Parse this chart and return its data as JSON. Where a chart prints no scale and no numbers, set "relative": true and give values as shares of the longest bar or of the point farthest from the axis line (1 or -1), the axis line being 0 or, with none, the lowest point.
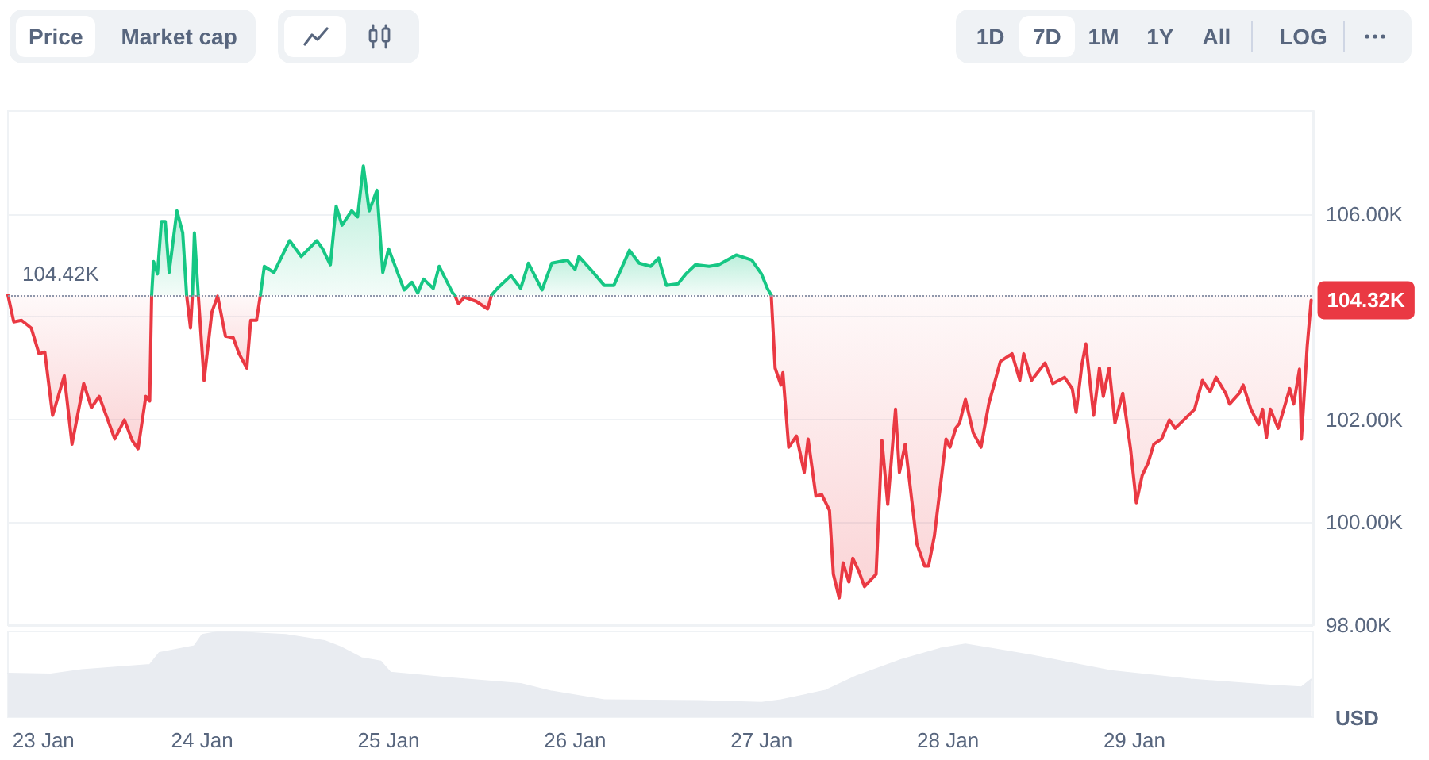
{
  "chart_data": [
    {
      "type": "line",
      "ylabel": "USD",
      "annotations": [
        "Price",
        "Market cap",
        "1D",
        "7D",
        "1M",
        "1Y",
        "All",
        "LOG"
      ],
      "x": [
        "--01-22T23:00",
        "--01-22T23:45",
        "--01-23T00:45",
        "--01-23T02:00",
        "--01-23T03:00",
        "--01-23T03:45",
        "--01-23T04:45",
        "--01-23T06:15",
        "--01-23T07:15",
        "--01-23T08:45",
        "--01-23T09:45",
        "--01-23T10:45",
        "--01-23T12:45",
        "--01-23T14:00",
        "--01-23T15:00",
        "--01-23T15:45",
        "--01-23T16:45",
        "--01-23T17:15",
        "--01-23T17:30",
        "--01-23T17:45",
        "--01-23T18:15",
        "--01-23T18:45",
        "--01-23T19:15",
        "--01-23T19:45",
        "--01-23T20:45",
        "--01-23T21:30",
        "--01-23T22:00",
        "--01-23T22:30",
        "--01-23T22:45",
        "--01-23T23:00",
        "--01-23T23:30",
        "--01-24T00:15",
        "--01-24T01:15",
        "--01-24T02:00",
        "--01-24T03:00",
        "--01-24T04:00",
        "--01-24T04:45",
        "--01-24T05:45",
        "--01-24T06:15",
        "--01-24T07:00",
        "--01-24T07:30",
        "--01-24T08:00",
        "--01-24T09:15",
        "--01-24T11:15",
        "--01-24T12:45",
        "--01-24T14:45",
        "--01-24T15:30",
        "--01-24T16:30",
        "--01-24T17:15",
        "--01-24T18:00",
        "--01-24T19:15",
        "--01-24T20:00",
        "--01-24T20:45",
        "--01-24T21:30",
        "--01-24T22:30",
        "--01-24T23:15",
        "--01-25T00:00",
        "--01-25T01:00",
        "--01-25T02:00",
        "--01-25T03:00",
        "--01-25T03:45",
        "--01-25T04:30",
        "--01-25T05:45",
        "--01-25T06:30",
        "--01-25T08:15",
        "--01-25T08:30",
        "--01-25T09:00",
        "--01-25T09:45",
        "--01-25T11:15",
        "--01-25T12:45",
        "--01-25T13:15",
        "--01-25T14:00",
        "--01-25T15:45",
        "--01-25T17:00",
        "--01-25T18:00",
        "--01-25T19:45",
        "--01-25T21:00",
        "--01-25T23:00",
        "--01-26T00:00",
        "--01-26T00:30",
        "--01-26T02:00",
        "--01-26T03:45",
        "--01-26T05:00",
        "--01-26T07:00",
        "--01-26T08:15",
        "--01-26T09:45",
        "--01-26T10:45",
        "--01-26T11:45",
        "--01-26T13:15",
        "--01-26T14:15",
        "--01-26T15:30",
        "--01-26T17:15",
        "--01-26T18:30",
        "--01-26T20:45",
        "--01-26T22:45",
        "--01-27T00:00",
        "--01-27T00:45",
        "--01-27T01:15",
        "--01-27T01:45",
        "--01-27T02:30",
        "--01-27T02:45",
        "--01-27T03:30",
        "--01-27T04:30",
        "--01-27T05:30",
        "--01-27T06:00",
        "--01-27T07:00",
        "--01-27T07:45",
        "--01-27T08:45",
        "--01-27T09:15",
        "--01-27T10:00",
        "--01-27T10:30",
        "--01-27T11:15",
        "--01-27T11:45",
        "--01-27T12:30",
        "--01-27T13:15",
        "--01-27T14:45",
        "--01-27T15:30",
        "--01-27T16:15",
        "--01-27T17:15",
        "--01-27T17:45",
        "--01-27T18:30",
        "--01-27T20:00",
        "--01-27T21:00",
        "--01-27T21:30",
        "--01-27T22:15",
        "--01-27T23:45",
        "--01-28T00:15",
        "--01-28T01:00",
        "--01-28T01:30",
        "--01-28T02:15",
        "--01-28T03:15",
        "--01-28T04:15",
        "--01-28T05:15",
        "--01-28T06:45",
        "--01-28T08:15",
        "--01-28T09:15",
        "--01-28T09:45",
        "--01-28T10:45",
        "--01-28T12:30",
        "--01-28T13:30",
        "--01-28T15:00",
        "--01-28T16:00",
        "--01-28T16:30",
        "--01-28T17:15",
        "--01-28T17:45",
        "--01-28T18:45",
        "--01-28T19:30",
        "--01-28T20:00",
        "--01-28T20:45",
        "--01-28T21:30",
        "--01-28T22:30",
        "--01-28T23:30",
        "--01-29T00:15",
        "--01-29T01:00",
        "--01-29T01:45",
        "--01-29T02:30",
        "--01-29T03:30",
        "--01-29T04:30",
        "--01-29T05:15",
        "--01-29T06:45",
        "--01-29T07:45",
        "--01-29T08:45",
        "--01-29T09:45",
        "--01-29T10:30",
        "--01-29T11:45",
        "--01-29T12:15",
        "--01-29T13:30",
        "--01-29T14:00",
        "--01-29T15:00",
        "--01-29T16:00",
        "--01-29T16:30",
        "--01-29T17:00",
        "--01-29T17:30",
        "--01-29T18:30",
        "--01-29T20:00",
        "--01-29T20:30",
        "--01-29T21:15",
        "--01-29T21:30",
        "--01-29T22:15",
        "--01-29T22:45"
      ],
      "series": [
        {
          "color": "#ea3943",
          "values": [
            104420,
            103900,
            103930,
            103780,
            103280,
            103310,
            102080,
            102850,
            101520,
            102700,
            102230,
            102450,
            101620,
            101990,
            101590,
            101430,
            102450,
            102360,
            104420,
            null,
            null,
            null,
            null,
            null,
            null,
            null,
            104420,
            103780,
            104420,
            null,
            104420,
            102760,
            104090,
            104400,
            103620,
            103590,
            103280,
            103000,
            103930,
            103930,
            104420,
            null,
            null,
            null,
            null,
            null,
            null,
            null,
            null,
            null,
            null,
            null,
            null,
            null,
            null,
            null,
            null,
            null,
            null,
            null,
            null,
            null,
            null,
            null,
            null,
            104420,
            104250,
            104380,
            104300,
            104150,
            104420,
            null,
            null,
            null,
            null,
            null,
            null,
            null,
            null,
            null,
            null,
            null,
            null,
            null,
            null,
            null,
            null,
            null,
            null,
            null,
            null,
            null,
            null,
            null,
            null,
            null,
            null,
            104420,
            103000,
            102670,
            102910,
            101460,
            101680,
            100970,
            101620,
            100510,
            100540,
            100230,
            98990,
            98530,
            99210,
            98840,
            99300,
            99060,
            98750,
            98990,
            101590,
            100350,
            102200,
            100970,
            101520,
            99580,
            99150,
            99150,
            99730,
            101620,
            101460,
            101830,
            101930,
            102390,
            101740,
            101460,
            102300,
            103130,
            103280,
            102760,
            103280,
            102760,
            103100,
            102700,
            102820,
            102600,
            102140,
            103070,
            103470,
            102080,
            103000,
            102450,
            103000,
            101930,
            102510,
            101430,
            100380,
            100910,
            101150,
            101520,
            101620,
            101990,
            101830,
            102050,
            102200,
            102760,
            102540,
            102820,
            102510,
            102300,
            102510,
            102670,
            102200,
            101900,
            102200,
            101650,
            102200,
            101830,
            102600,
            102300,
            102980,
            101620,
            103440,
            104320
          ],
          "lower": [
            104420,
            103900,
            103930,
            103780,
            103280,
            103310,
            102080,
            102850,
            101520,
            102700,
            102230,
            102450,
            101620,
            101990,
            101590,
            101430,
            102450,
            102360,
            104420,
            null,
            null,
            null,
            null,
            null,
            null,
            null,
            104420,
            103780,
            104420,
            null,
            104420,
            102760,
            104090,
            104400,
            103620,
            103590,
            103280,
            103000,
            103930,
            103930,
            104420,
            null,
            null,
            null,
            null,
            null,
            null,
            null,
            null,
            null,
            null,
            null,
            null,
            null,
            null,
            null,
            null,
            null,
            null,
            null,
            null,
            null,
            null,
            null,
            null,
            104420,
            104250,
            104380,
            104300,
            104150,
            104420,
            null,
            null,
            null,
            null,
            null,
            null,
            null,
            null,
            null,
            null,
            null,
            null,
            null,
            null,
            null,
            null,
            null,
            null,
            null,
            null,
            null,
            null,
            null,
            null,
            null,
            null,
            104420,
            103000,
            102670,
            102910,
            101460,
            101680,
            100970,
            101620,
            100510,
            100540,
            100230,
            98990,
            98530,
            99210,
            98840,
            99300,
            99060,
            98750,
            98990,
            101590,
            100350,
            102200,
            100970,
            101520,
            99580,
            99150,
            99150,
            99730,
            101620,
            101460,
            101830,
            101930,
            102390,
            101740,
            101460,
            102300,
            103130,
            103280,
            102760,
            103280,
            102760,
            103100,
            102700,
            102820,
            102600,
            102140,
            103070,
            103470,
            102080,
            103000,
            102450,
            103000,
            101930,
            102510,
            101430,
            100380,
            100910,
            101150,
            101520,
            101620,
            101990,
            101830,
            102050,
            102200,
            102760,
            102540,
            102820,
            102510,
            102300,
            102510,
            102670,
            102200,
            101900,
            102200,
            101650,
            102200,
            101830,
            102600,
            102300,
            102980,
            101620,
            103440,
            104320
          ],
          "upper": [
            104420,
            104420,
            104420,
            104420,
            104420,
            104420,
            104420,
            104420,
            104420,
            104420,
            104420,
            104420,
            104420,
            104420,
            104420,
            104420,
            104420,
            104420,
            104420,
            null,
            null,
            null,
            null,
            null,
            null,
            null,
            104420,
            104420,
            104420,
            null,
            104420,
            104420,
            104420,
            104420,
            104420,
            104420,
            104420,
            104420,
            104420,
            104420,
            104420,
            null,
            null,
            null,
            null,
            null,
            null,
            null,
            null,
            null,
            null,
            null,
            null,
            null,
            null,
            null,
            null,
            null,
            null,
            null,
            null,
            null,
            null,
            null,
            null,
            104420,
            104420,
            104420,
            104420,
            104420,
            104420,
            null,
            null,
            null,
            null,
            null,
            null,
            null,
            null,
            null,
            null,
            null,
            null,
            null,
            null,
            null,
            null,
            null,
            null,
            null,
            null,
            null,
            null,
            null,
            null,
            null,
            null,
            104420,
            104420,
            104420,
            104420,
            104420,
            104420,
            104420,
            104420,
            104420,
            104420,
            104420,
            104420,
            104420,
            104420,
            104420,
            104420,
            104420,
            104420,
            104420,
            104420,
            104420,
            104420,
            104420,
            104420,
            104420,
            104420,
            104420,
            104420,
            104420,
            104420,
            104420,
            104420,
            104420,
            104420,
            104420,
            104420,
            104420,
            104420,
            104420,
            104420,
            104420,
            104420,
            104420,
            104420,
            104420,
            104420,
            104420,
            104420,
            104420,
            104420,
            104420,
            104420,
            104420,
            104420,
            104420,
            104420,
            104420,
            104420,
            104420,
            104420,
            104420,
            104420,
            104420,
            104420,
            104420,
            104420,
            104420,
            104420,
            104420,
            104420,
            104420,
            104420,
            104420,
            104420,
            104420,
            104420,
            104420,
            104420,
            104420,
            104420,
            104420,
            104420,
            104420
          ],
          "value_labels": [
            null,
            null,
            null,
            null,
            null,
            null,
            null,
            null,
            null,
            null,
            null,
            null,
            null,
            null,
            null,
            null,
            null,
            null,
            null,
            null,
            null,
            null,
            null,
            null,
            null,
            null,
            null,
            null,
            null,
            null,
            null,
            null,
            null,
            null,
            null,
            null,
            null,
            null,
            null,
            null,
            null,
            null,
            null,
            null,
            null,
            null,
            null,
            null,
            null,
            null,
            null,
            null,
            null,
            null,
            null,
            null,
            null,
            null,
            null,
            null,
            null,
            null,
            null,
            null,
            null,
            null,
            null,
            null,
            null,
            null,
            null,
            null,
            null,
            null,
            null,
            null,
            null,
            null,
            null,
            null,
            null,
            null,
            null,
            null,
            null,
            null,
            null,
            null,
            null,
            null,
            null,
            null,
            null,
            null,
            null,
            null,
            null,
            null,
            null,
            null,
            null,
            null,
            null,
            null,
            null,
            null,
            null,
            null,
            null,
            null,
            null,
            null,
            null,
            null,
            null,
            null,
            null,
            null,
            null,
            null,
            null,
            null,
            null,
            null,
            null,
            null,
            null,
            null,
            null,
            null,
            null,
            null,
            null,
            null,
            null,
            null,
            null,
            null,
            null,
            null,
            null,
            null,
            null,
            null,
            null,
            null,
            null,
            null,
            null,
            null,
            null,
            null,
            null,
            null,
            null,
            null,
            null,
            null,
            null,
            null,
            null,
            null,
            null,
            null,
            null,
            null,
            null,
            null,
            null,
            null,
            null,
            null,
            null,
            null,
            null,
            null,
            null,
            null,
            null,
            "104.32K"
          ]
        },
        {
          "color": "#16c784",
          "values": [
            null,
            null,
            null,
            null,
            null,
            null,
            null,
            null,
            null,
            null,
            null,
            null,
            null,
            null,
            null,
            null,
            null,
            null,
            104420,
            105070,
            104830,
            105850,
            105850,
            104860,
            106060,
            105630,
            104420,
            null,
            104420,
            105630,
            104420,
            null,
            null,
            null,
            null,
            null,
            null,
            null,
            null,
            null,
            104420,
            104980,
            104860,
            105480,
            105170,
            105480,
            105320,
            105010,
            106150,
            105780,
            106060,
            105940,
            106930,
            106060,
            106460,
            104860,
            105320,
            104920,
            104520,
            104670,
            104460,
            104730,
            104550,
            104980,
            104460,
            104420,
            null,
            null,
            null,
            null,
            104420,
            104550,
            104800,
            104550,
            105040,
            104520,
            105040,
            105100,
            104920,
            105170,
            104920,
            104610,
            104610,
            105290,
            105040,
            104980,
            105140,
            104610,
            104640,
            104830,
            105010,
            104980,
            105010,
            105200,
            105100,
            104830,
            104550,
            104420,
            null,
            null,
            null,
            null,
            null,
            null,
            null,
            null,
            null,
            null,
            null,
            null,
            null,
            null,
            null,
            null,
            null,
            null,
            null,
            null,
            null,
            null,
            null,
            null,
            null,
            null,
            null,
            null,
            null,
            null,
            null,
            null,
            null,
            null,
            null,
            null,
            null,
            null,
            null,
            null,
            null,
            null,
            null,
            null,
            null,
            null,
            null,
            null,
            null,
            null,
            null,
            null,
            null,
            null,
            null,
            null,
            null,
            null,
            null,
            null,
            null,
            null,
            null,
            null,
            null,
            null,
            null,
            null,
            null,
            null,
            null,
            null,
            null,
            null,
            null,
            null,
            null,
            null,
            null,
            null,
            null,
            null
          ],
          "lower": [
            null,
            null,
            null,
            null,
            null,
            null,
            null,
            null,
            null,
            null,
            null,
            null,
            null,
            null,
            null,
            null,
            null,
            null,
            104420,
            104420,
            104420,
            104420,
            104420,
            104420,
            104420,
            104420,
            104420,
            null,
            null,
            null,
            null,
            null,
            null,
            null,
            null,
            null,
            null,
            null,
            null,
            null,
            104420,
            104420,
            104420,
            104420,
            104420,
            104420,
            104420,
            104420,
            104420,
            104420,
            104420,
            104420,
            104420,
            104420,
            104420,
            104420,
            104420,
            104420,
            104420,
            104420,
            104420,
            104420,
            104420,
            104420,
            104420,
            104420,
            null,
            null,
            null,
            null,
            104420,
            104420,
            104420,
            104420,
            104420,
            104420,
            104420,
            104420,
            104420,
            104420,
            104420,
            104420,
            104420,
            104420,
            104420,
            104420,
            104420,
            104420,
            104420,
            104420,
            104420,
            104420,
            104420,
            104420,
            104420,
            104420,
            104420,
            104420,
            null,
            null,
            null,
            null,
            null,
            null,
            null,
            null,
            null,
            null,
            null,
            null,
            null,
            null,
            null,
            null,
            null,
            null,
            null,
            null,
            null,
            null,
            null,
            null,
            null,
            null,
            null,
            null,
            null,
            null,
            null,
            null,
            null,
            null,
            null,
            null,
            null,
            null,
            null,
            null,
            null,
            null,
            null,
            null,
            null,
            null,
            null,
            null,
            null,
            null,
            null,
            null,
            null,
            null,
            null,
            null,
            null,
            null,
            null,
            null,
            null,
            null,
            null,
            null,
            null,
            null,
            null,
            null,
            null,
            null,
            null,
            null,
            null,
            null,
            null,
            null,
            null,
            null,
            null,
            null,
            null,
            null
          ],
          "upper": [
            null,
            null,
            null,
            null,
            null,
            null,
            null,
            null,
            null,
            null,
            null,
            null,
            null,
            null,
            null,
            null,
            null,
            null,
            104420,
            105070,
            104830,
            105850,
            105850,
            104860,
            106060,
            105630,
            104420,
            null,
            null,
            null,
            null,
            null,
            null,
            null,
            null,
            null,
            null,
            null,
            null,
            null,
            104420,
            104980,
            104860,
            105480,
            105170,
            105480,
            105320,
            105010,
            106150,
            105780,
            106060,
            105940,
            106930,
            106060,
            106460,
            104860,
            105320,
            104920,
            104520,
            104670,
            104460,
            104730,
            104550,
            104980,
            104460,
            104420,
            null,
            null,
            null,
            null,
            104420,
            104550,
            104800,
            104550,
            105040,
            104520,
            105040,
            105100,
            104920,
            105170,
            104920,
            104610,
            104610,
            105290,
            105040,
            104980,
            105140,
            104610,
            104640,
            104830,
            105010,
            104980,
            105010,
            105200,
            105100,
            104830,
            104550,
            104420,
            null,
            null,
            null,
            null,
            null,
            null,
            null,
            null,
            null,
            null,
            null,
            null,
            null,
            null,
            null,
            null,
            null,
            null,
            null,
            null,
            null,
            null,
            null,
            null,
            null,
            null,
            null,
            null,
            null,
            null,
            null,
            null,
            null,
            null,
            null,
            null,
            null,
            null,
            null,
            null,
            null,
            null,
            null,
            null,
            null,
            null,
            null,
            null,
            null,
            null,
            null,
            null,
            null,
            null,
            null,
            null,
            null,
            null,
            null,
            null,
            null,
            null,
            null,
            null,
            null,
            null,
            null,
            null,
            null,
            null,
            null,
            null,
            null,
            null,
            null,
            null,
            null,
            null,
            null,
            null,
            null,
            null
          ]
        }
      ],
      "xlim": [
        "--01-22T23:00",
        "--01-29T23:00"
      ],
      "ylim": [
        98000,
        108000
      ],
      "yticks": [
        {
          "value": 98000,
          "label": "98.00K"
        },
        {
          "value": 100000,
          "label": "100.00K"
        },
        {
          "value": 102000,
          "label": "102.00K"
        },
        {
          "value": 104000,
          "label": null
        },
        {
          "value": 106000,
          "label": "106.00K"
        }
      ],
      "grid": "y",
      "tick_labels": "y",
      "ref_lines": [
        {
          "axis": "y",
          "value": 104420,
          "label": "104.42K",
          "line_style": "dotted",
          "color": "#8f97ab"
        }
      ]
    },
    {
      "type": "area",
      "relative": true,
      "x": [
        "--01-22T23:00",
        "--01-23T04:30",
        "--01-23T08:30",
        "--01-23T17:15",
        "--01-23T18:30",
        "--01-23T23:00",
        "--01-24T00:00",
        "--01-24T02:30",
        "--01-24T10:45",
        "--01-24T15:45",
        "--01-24T18:00",
        "--01-24T20:30",
        "--01-24T23:00",
        "--01-25T00:15",
        "--01-25T07:15",
        "--01-25T17:00",
        "--01-25T21:00",
        "--01-26T03:45",
        "--01-26T16:00",
        "--01-27T00:00",
        "--01-27T02:30",
        "--01-27T08:15",
        "--01-27T12:15",
        "--01-27T18:00",
        "--01-27T23:00",
        "--01-28T02:15",
        "--01-28T10:45",
        "--01-28T21:00",
        "--01-29T07:15",
        "--01-29T17:30",
        "--01-29T21:30",
        "--01-29T22:45"
      ],
      "values": [
        0.51,
        0.5,
        0.55,
        0.61,
        0.75,
        0.83,
        0.96,
        1,
        0.96,
        0.89,
        0.81,
        0.69,
        0.65,
        0.52,
        0.46,
        0.39,
        0.3,
        0.2,
        0.19,
        0.17,
        0.2,
        0.31,
        0.48,
        0.67,
        0.8,
        0.85,
        0.72,
        0.54,
        0.44,
        0.37,
        0.35,
        0.44
      ],
      "color": "#e9ecf1",
      "xlim": [
        "--01-22T23:00",
        "--01-29T23:00"
      ],
      "xticks": [
        {
          "value": "--01-23",
          "label": "23 Jan"
        },
        {
          "value": "--01-24",
          "label": "24 Jan"
        },
        {
          "value": "--01-25",
          "label": "25 Jan"
        },
        {
          "value": "--01-26",
          "label": "26 Jan"
        },
        {
          "value": "--01-27",
          "label": "27 Jan"
        },
        {
          "value": "--01-28",
          "label": "28 Jan"
        },
        {
          "value": "--01-29",
          "label": "29 Jan"
        }
      ],
      "tick_labels": "x"
    }
  ]
}
